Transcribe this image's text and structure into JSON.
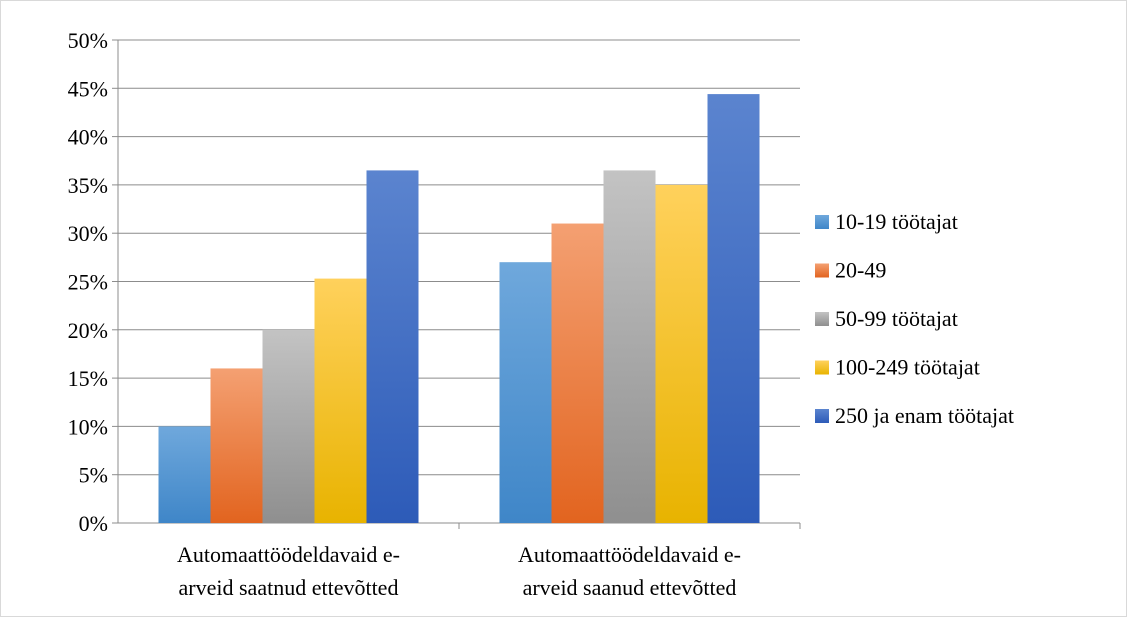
{
  "chart_data": {
    "type": "bar",
    "categories": [
      [
        "Automaattöödeldavaid e-",
        "arveid saatnud ettevõtted"
      ],
      [
        "Automaattöödeldavaid e-",
        "arveid saanud ettevõtted"
      ]
    ],
    "series": [
      {
        "name": "10-19 töötajat",
        "values": [
          10,
          27
        ],
        "color_top": "#6fa8dc",
        "color_bottom": "#3f86c8"
      },
      {
        "name": "20-49",
        "values": [
          16,
          31
        ],
        "color_top": "#f4a072",
        "color_bottom": "#e2641f"
      },
      {
        "name": "50-99 töötajat",
        "values": [
          20,
          36.5
        ],
        "color_top": "#c3c3c3",
        "color_bottom": "#8f8f8f"
      },
      {
        "name": "100-249 töötajat",
        "values": [
          25.3,
          35
        ],
        "color_top": "#ffd15c",
        "color_bottom": "#e8b300"
      },
      {
        "name": "250 ja enam töötajat",
        "values": [
          36.5,
          44.4
        ],
        "color_top": "#5b84cf",
        "color_bottom": "#2d5bb8"
      }
    ],
    "yticks": [
      "0%",
      "5%",
      "10%",
      "15%",
      "20%",
      "25%",
      "30%",
      "35%",
      "40%",
      "45%",
      "50%"
    ],
    "ylim": [
      0,
      50
    ],
    "grid": true,
    "legend_position": "right",
    "title": "",
    "xlabel": "",
    "ylabel": ""
  }
}
